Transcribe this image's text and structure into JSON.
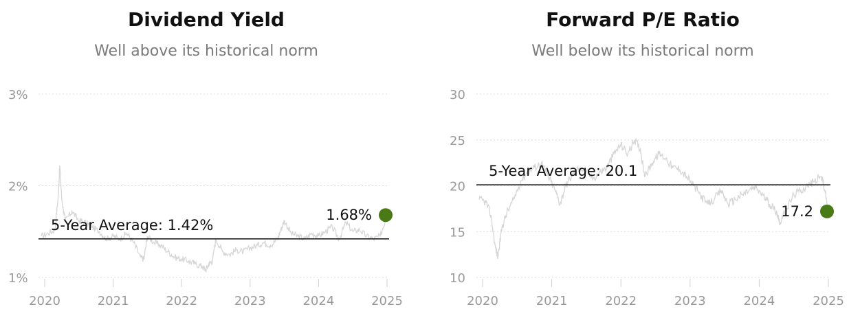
{
  "charts": [
    {
      "title": "Dividend Yield",
      "subtitle": "Well above its historical norm",
      "average_label": "5-Year Average: 1.42%",
      "current_label": "1.68%",
      "y_tick_labels": [
        "3%",
        "2%",
        "1%"
      ],
      "x_tick_labels": [
        "2020",
        "2021",
        "2022",
        "2023",
        "2024",
        "2025"
      ]
    },
    {
      "title": "Forward P/E Ratio",
      "subtitle": "Well below its historical norm",
      "average_label": "5-Year Average: 20.1",
      "current_label": "17.2",
      "y_tick_labels": [
        "30",
        "25",
        "20",
        "15",
        "10"
      ],
      "x_tick_labels": [
        "2020",
        "2021",
        "2022",
        "2023",
        "2024",
        "2025"
      ]
    }
  ],
  "colors": {
    "line": "#d6d6d6",
    "average": "#111111",
    "current_marker": "#4a7a16",
    "grid": "#dcdcdc",
    "tick_text": "#9a9a9a"
  },
  "chart_data": [
    {
      "type": "line",
      "title": "Dividend Yield",
      "subtitle": "Well above its historical norm",
      "y_unit": "%",
      "ylim": [
        1,
        3
      ],
      "y_ticks": [
        1,
        2,
        3
      ],
      "xlim": [
        2020,
        2025
      ],
      "x_ticks": [
        2020,
        2021,
        2022,
        2023,
        2024,
        2025
      ],
      "grid": "horizontal dotted",
      "average": 1.42,
      "current": 1.68,
      "series": [
        {
          "x": [
            2019.95,
            2020.05,
            2020.15,
            2020.2,
            2020.22,
            2020.25,
            2020.3,
            2020.4,
            2020.5,
            2020.6,
            2020.7,
            2020.8,
            2020.9,
            2021.0,
            2021.1,
            2021.2,
            2021.3,
            2021.4,
            2021.45,
            2021.5,
            2021.6,
            2021.7,
            2021.8,
            2021.9,
            2022.0,
            2022.1,
            2022.2,
            2022.3,
            2022.35,
            2022.4,
            2022.45,
            2022.5,
            2022.6,
            2022.7,
            2022.8,
            2022.9,
            2023.0,
            2023.1,
            2023.2,
            2023.3,
            2023.4,
            2023.45,
            2023.5,
            2023.6,
            2023.7,
            2023.8,
            2023.9,
            2024.0,
            2024.1,
            2024.2,
            2024.3,
            2024.4,
            2024.5,
            2024.6,
            2024.7,
            2024.8,
            2024.9,
            2025.0
          ],
          "y": [
            1.45,
            1.48,
            1.52,
            1.9,
            2.22,
            1.85,
            1.62,
            1.72,
            1.62,
            1.6,
            1.55,
            1.5,
            1.42,
            1.45,
            1.42,
            1.48,
            1.38,
            1.22,
            1.2,
            1.45,
            1.38,
            1.35,
            1.28,
            1.22,
            1.2,
            1.18,
            1.15,
            1.12,
            1.08,
            1.15,
            1.18,
            1.42,
            1.28,
            1.25,
            1.3,
            1.28,
            1.32,
            1.35,
            1.38,
            1.35,
            1.42,
            1.52,
            1.62,
            1.48,
            1.45,
            1.42,
            1.48,
            1.45,
            1.5,
            1.55,
            1.42,
            1.6,
            1.5,
            1.52,
            1.45,
            1.42,
            1.45,
            1.68
          ]
        }
      ]
    },
    {
      "type": "line",
      "title": "Forward P/E Ratio",
      "subtitle": "Well below its historical norm",
      "ylim": [
        10,
        30
      ],
      "y_ticks": [
        10,
        15,
        20,
        25,
        30
      ],
      "xlim": [
        2020,
        2025
      ],
      "x_ticks": [
        2020,
        2021,
        2022,
        2023,
        2024,
        2025
      ],
      "grid": "horizontal dotted",
      "average": 20.1,
      "current": 17.2,
      "series": [
        {
          "x": [
            2019.95,
            2020.05,
            2020.12,
            2020.18,
            2020.22,
            2020.28,
            2020.35,
            2020.45,
            2020.55,
            2020.65,
            2020.75,
            2020.85,
            2020.95,
            2021.05,
            2021.12,
            2021.2,
            2021.3,
            2021.4,
            2021.5,
            2021.6,
            2021.7,
            2021.8,
            2021.9,
            2022.0,
            2022.1,
            2022.2,
            2022.28,
            2022.35,
            2022.45,
            2022.55,
            2022.65,
            2022.75,
            2022.85,
            2022.95,
            2023.05,
            2023.15,
            2023.25,
            2023.35,
            2023.45,
            2023.55,
            2023.65,
            2023.75,
            2023.85,
            2023.95,
            2024.05,
            2024.15,
            2024.25,
            2024.3,
            2024.4,
            2024.5,
            2024.6,
            2024.7,
            2024.8,
            2024.9,
            2024.95,
            2025.0
          ],
          "y": [
            18.5,
            18.2,
            16.8,
            13.5,
            12.2,
            15.5,
            17.0,
            18.5,
            20.5,
            21.5,
            22.0,
            22.5,
            21.0,
            19.5,
            18.0,
            20.0,
            21.2,
            22.0,
            21.5,
            20.8,
            21.5,
            22.0,
            23.5,
            24.5,
            23.5,
            25.0,
            24.0,
            21.0,
            22.5,
            23.5,
            23.0,
            22.0,
            21.8,
            21.0,
            20.0,
            19.0,
            18.0,
            18.5,
            19.5,
            18.0,
            18.5,
            19.0,
            19.5,
            19.8,
            19.0,
            18.0,
            17.2,
            16.0,
            17.5,
            19.0,
            19.5,
            20.0,
            20.5,
            21.0,
            19.5,
            17.2
          ]
        }
      ]
    }
  ]
}
